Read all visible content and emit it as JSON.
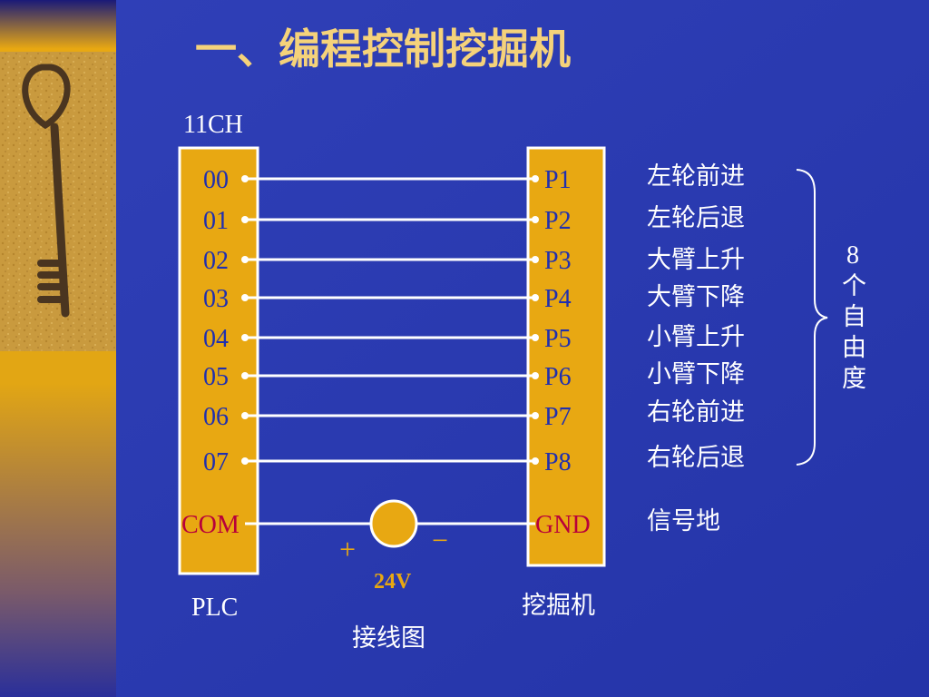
{
  "title": "一、编程控制挖掘机",
  "plc_channel": "11CH",
  "plc_pins": [
    "00",
    "01",
    "02",
    "03",
    "04",
    "05",
    "06",
    "07"
  ],
  "plc_com": "COM",
  "excavator_pins": [
    "P1",
    "P2",
    "P3",
    "P4",
    "P5",
    "P6",
    "P7",
    "P8"
  ],
  "excavator_gnd": "GND",
  "functions": [
    "左轮前进",
    "左轮后退",
    "大臂上升",
    "大臂下降",
    "小臂上升",
    "小臂下降",
    "右轮前进",
    "右轮后退"
  ],
  "dof_number": "8",
  "dof_chars": [
    "个",
    "自",
    "由",
    "度"
  ],
  "signal_ground": "信号地",
  "power": {
    "voltage": "24V",
    "plus": "+",
    "minus": "−"
  },
  "plc_label": "PLC",
  "excavator_label": "挖掘机",
  "caption": "接线图",
  "colors": {
    "background": "#2e3bb0",
    "accent": "#e8a812",
    "title": "#f5d27a"
  }
}
